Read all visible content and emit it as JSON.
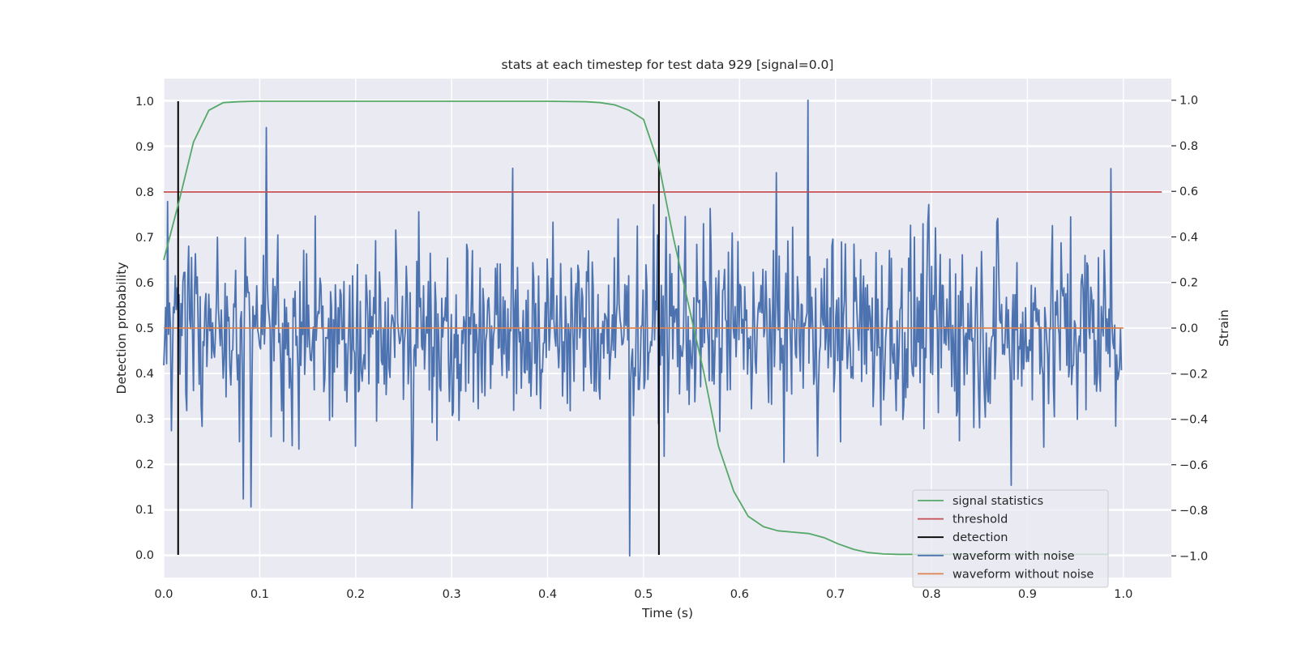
{
  "chart_data": {
    "type": "line",
    "title": "stats at each timestep for test data 929 [signal=0.0]",
    "xlabel": "Time (s)",
    "ylabel": "Detection probability",
    "ylabel_right": "Strain",
    "xlim": [
      0.0,
      1.05
    ],
    "ylim": [
      -0.05,
      1.05
    ],
    "ylim_right": [
      -1.095,
      1.095
    ],
    "x_ticks": [
      "0.0",
      "0.1",
      "0.2",
      "0.3",
      "0.4",
      "0.5",
      "0.6",
      "0.7",
      "0.8",
      "0.9",
      "1.0"
    ],
    "y_ticks": [
      "0.0",
      "0.1",
      "0.2",
      "0.3",
      "0.4",
      "0.5",
      "0.6",
      "0.7",
      "0.8",
      "0.9",
      "1.0"
    ],
    "y_right_ticks": [
      "−1.0",
      "−0.8",
      "−0.6",
      "−0.4",
      "−0.2",
      "0.0",
      "0.2",
      "0.4",
      "0.6",
      "0.8",
      "1.0"
    ],
    "grid": true,
    "legend_position": "bottom-right",
    "colors": {
      "background": "#eaeaf2",
      "grid": "#ffffff",
      "signal_statistics": "#55a868",
      "threshold": "#c44e52",
      "detection": "#000000",
      "waveform_with_noise": "#4c72b0",
      "waveform_without_noise": "#dd8452"
    },
    "series": [
      {
        "name": "signal statistics",
        "axis": "left",
        "x": [
          0.0,
          0.016,
          0.031,
          0.047,
          0.062,
          0.078,
          0.094,
          0.11,
          0.2,
          0.3,
          0.4,
          0.44,
          0.455,
          0.47,
          0.485,
          0.5,
          0.516,
          0.531,
          0.547,
          0.563,
          0.578,
          0.594,
          0.609,
          0.625,
          0.64,
          0.656,
          0.672,
          0.688,
          0.703,
          0.719,
          0.734,
          0.75,
          0.766,
          0.781,
          0.8,
          0.85,
          0.9,
          0.95,
          0.984
        ],
        "y": [
          0.65,
          0.78,
          0.91,
          0.98,
          0.997,
          0.999,
          1.0,
          1.0,
          1.0,
          1.0,
          1.0,
          0.999,
          0.997,
          0.992,
          0.98,
          0.96,
          0.86,
          0.7,
          0.55,
          0.4,
          0.24,
          0.14,
          0.085,
          0.062,
          0.053,
          0.05,
          0.047,
          0.038,
          0.024,
          0.012,
          0.005,
          0.002,
          0.001,
          0.001,
          0.001,
          0.001,
          0.001,
          0.001,
          0.001
        ]
      },
      {
        "name": "threshold",
        "axis": "left",
        "x": [
          0.0,
          1.04
        ],
        "y": [
          0.8,
          0.8
        ]
      },
      {
        "name": "detection",
        "axis": "left",
        "x": [
          0.015,
          0.516
        ],
        "y_range": [
          0.0,
          1.0
        ]
      },
      {
        "name": "waveform with noise",
        "axis": "right",
        "x_range": [
          0.0,
          0.998
        ],
        "count": 1000,
        "y_range": [
          -1.0,
          1.0
        ],
        "notable_points": [
          {
            "x": 0.107,
            "y": 0.88
          },
          {
            "x": 0.083,
            "y": -0.75
          },
          {
            "x": 0.259,
            "y": -0.79
          },
          {
            "x": 0.486,
            "y": -1.0
          },
          {
            "x": 0.671,
            "y": 1.0
          },
          {
            "x": 0.883,
            "y": -0.69
          },
          {
            "x": 0.987,
            "y": 0.7
          }
        ]
      },
      {
        "name": "waveform without noise",
        "axis": "right",
        "x": [
          0.0,
          1.0
        ],
        "y": [
          0.0,
          0.0
        ]
      }
    ],
    "legend": [
      {
        "label": "signal statistics",
        "color": "#55a868"
      },
      {
        "label": "threshold",
        "color": "#c44e52"
      },
      {
        "label": "detection",
        "color": "#000000"
      },
      {
        "label": "waveform with noise",
        "color": "#4c72b0"
      },
      {
        "label": "waveform without noise",
        "color": "#dd8452"
      }
    ]
  }
}
